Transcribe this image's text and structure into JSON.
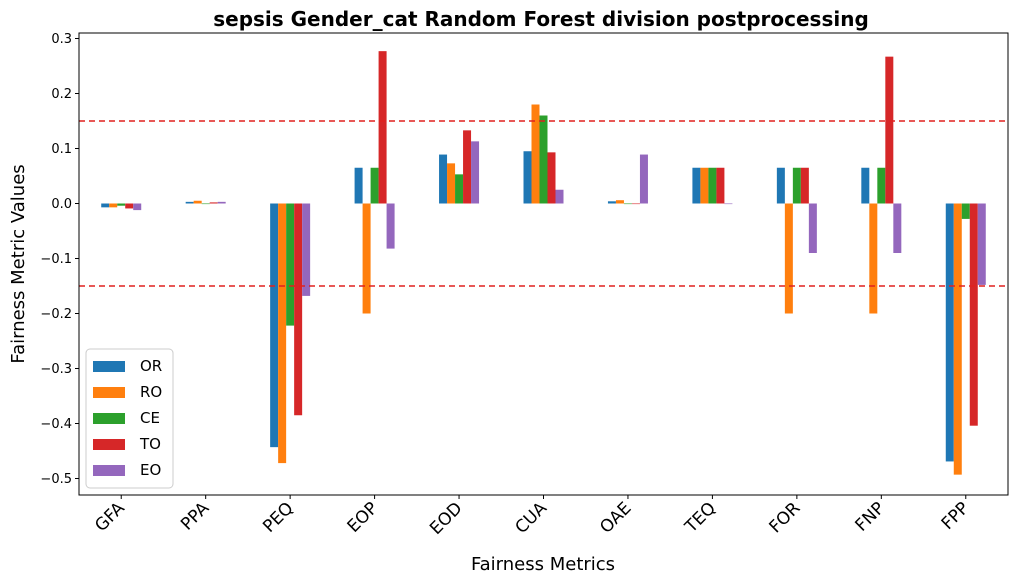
{
  "chart_data": {
    "type": "bar",
    "title": "sepsis Gender_cat Random Forest division postprocessing",
    "xlabel": "Fairness Metrics",
    "ylabel": "Fairness Metric Values",
    "categories": [
      "GFA",
      "PPA",
      "PEQ",
      "EOP",
      "EOD",
      "CUA",
      "OAE",
      "TEQ",
      "FOR",
      "FNP",
      "FPP"
    ],
    "ylim": [
      -0.53,
      0.31
    ],
    "yticks": [
      0.3,
      0.2,
      0.1,
      0.0,
      -0.1,
      -0.2,
      -0.3,
      -0.4,
      -0.5
    ],
    "ytick_labels": [
      "0.3",
      "0.2",
      "0.1",
      "0.0",
      "−0.1",
      "−0.2",
      "−0.3",
      "−0.4",
      "−0.5"
    ],
    "threshold_lines": [
      0.15,
      -0.15
    ],
    "legend_position": "lower-left",
    "grid": false,
    "series": [
      {
        "name": "OR",
        "color": "#1f77b4",
        "values": [
          -0.007,
          0.003,
          -0.443,
          0.065,
          0.089,
          0.095,
          0.004,
          0.065,
          0.065,
          0.065,
          -0.469
        ]
      },
      {
        "name": "RO",
        "color": "#ff7f0e",
        "values": [
          -0.007,
          0.005,
          -0.472,
          -0.2,
          0.073,
          0.18,
          0.006,
          0.065,
          -0.2,
          -0.2,
          -0.493
        ]
      },
      {
        "name": "CE",
        "color": "#2ca02c",
        "values": [
          -0.004,
          -0.001,
          -0.222,
          0.065,
          0.053,
          0.16,
          0.0,
          0.065,
          0.065,
          0.065,
          -0.028
        ]
      },
      {
        "name": "TO",
        "color": "#d62728",
        "values": [
          -0.009,
          0.002,
          -0.385,
          0.277,
          0.133,
          0.093,
          0.0,
          0.065,
          0.065,
          0.267,
          -0.404
        ]
      },
      {
        "name": "EO",
        "color": "#9467bd",
        "values": [
          -0.012,
          0.003,
          -0.168,
          -0.082,
          0.113,
          0.025,
          0.089,
          0.0,
          -0.09,
          -0.09,
          -0.148
        ]
      }
    ],
    "threshold_color": "#e0201f"
  }
}
